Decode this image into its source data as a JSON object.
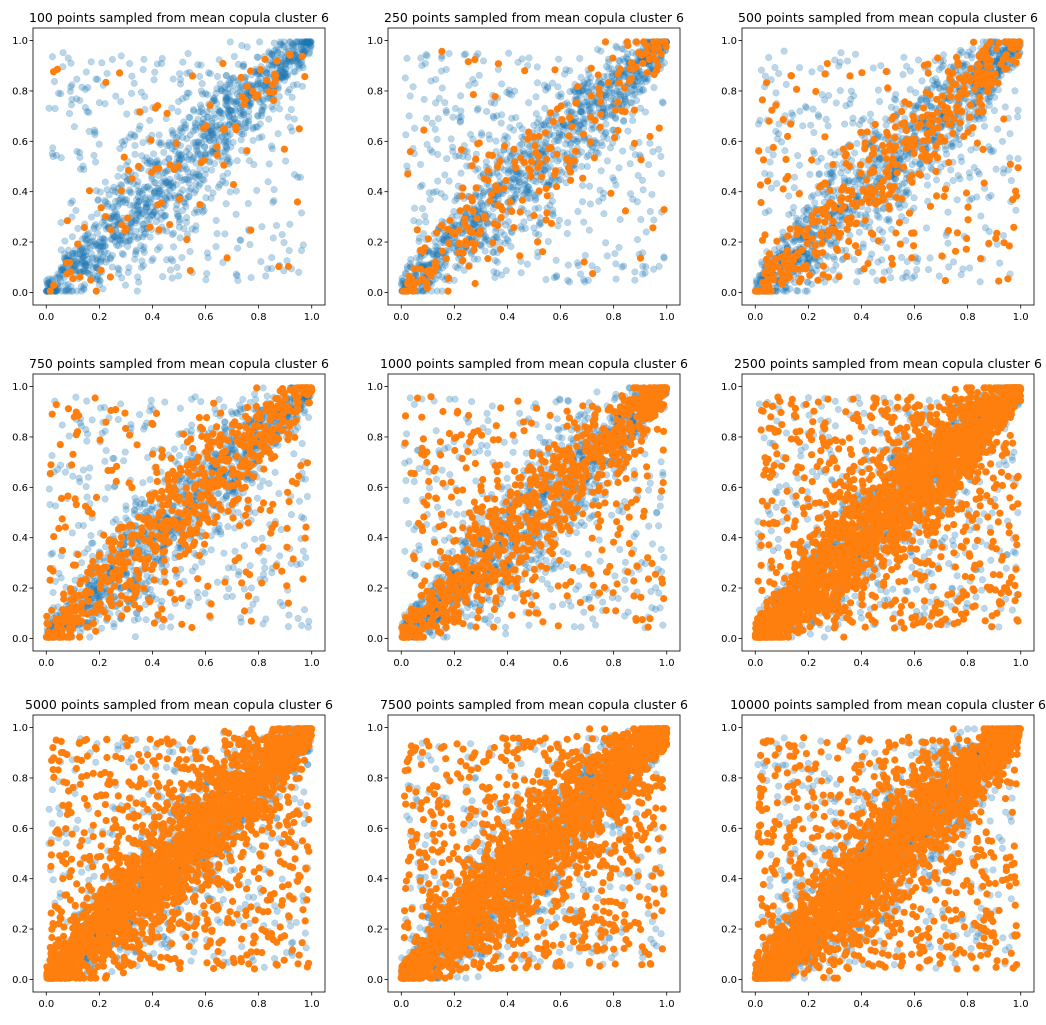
{
  "chart_data": [
    {
      "type": "scatter",
      "title": "100 points sampled from mean copula cluster 6",
      "n_sampled": 100
    },
    {
      "type": "scatter",
      "title": "250 points sampled from mean copula cluster 6",
      "n_sampled": 250
    },
    {
      "type": "scatter",
      "title": "500 points sampled from mean copula cluster 6",
      "n_sampled": 500
    },
    {
      "type": "scatter",
      "title": "750 points sampled from mean copula cluster 6",
      "n_sampled": 750
    },
    {
      "type": "scatter",
      "title": "1000 points sampled from mean copula cluster 6",
      "n_sampled": 1000
    },
    {
      "type": "scatter",
      "title": "2500 points sampled from mean copula cluster 6",
      "n_sampled": 2500
    },
    {
      "type": "scatter",
      "title": "5000 points sampled from mean copula cluster 6",
      "n_sampled": 5000
    },
    {
      "type": "scatter",
      "title": "7500 points sampled from mean copula cluster 6",
      "n_sampled": 7500
    },
    {
      "type": "scatter",
      "title": "10000 points sampled from mean copula cluster 6",
      "n_sampled": 10000
    }
  ],
  "shared": {
    "xlim": [
      -0.05,
      1.05
    ],
    "ylim": [
      -0.05,
      1.05
    ],
    "xticks": [
      "0.0",
      "0.2",
      "0.4",
      "0.6",
      "0.8",
      "1.0"
    ],
    "yticks": [
      "0.0",
      "0.2",
      "0.4",
      "0.6",
      "0.8",
      "1.0"
    ],
    "grid": false,
    "layout": "3x3",
    "series_colors": {
      "reference": "#1f77b4",
      "sampled": "#ff7f0e"
    },
    "reference_alpha": 0.3,
    "dependence": "strong positive, concentrated along diagonal with tails at corners"
  }
}
